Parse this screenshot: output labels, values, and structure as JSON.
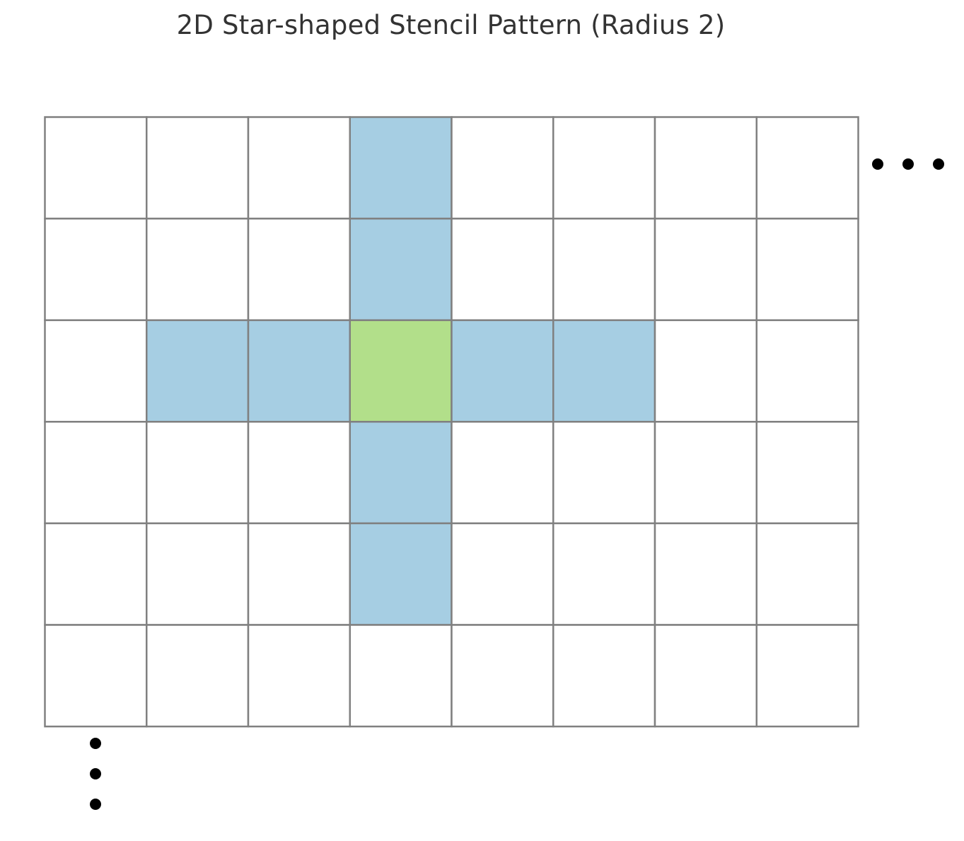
{
  "title": "2D Star-shaped Stencil Pattern (Radius 2)",
  "grid": {
    "rows": 6,
    "cols": 8,
    "center": {
      "row": 2,
      "col": 3
    },
    "radius": 2,
    "continuation": {
      "right": "horizontal-ellipsis",
      "bottom": "vertical-ellipsis"
    }
  },
  "colors": {
    "center": "#b2df8a",
    "neighbor": "#a6cee3",
    "empty": "#ffffff",
    "grid_line": "#808080",
    "dot": "#000000",
    "title": "#333333"
  }
}
